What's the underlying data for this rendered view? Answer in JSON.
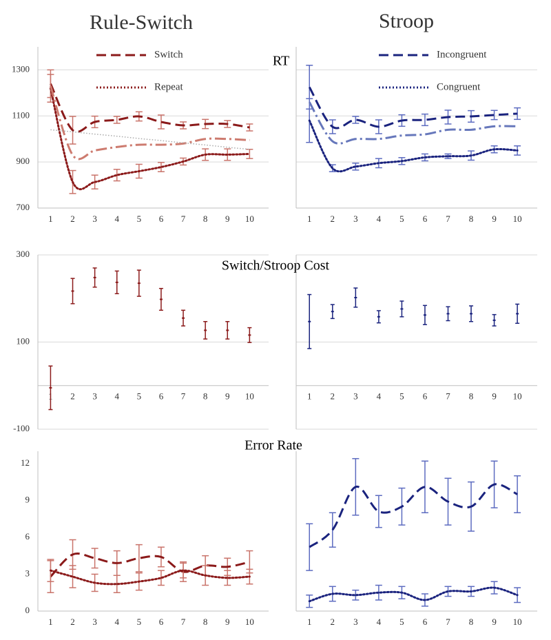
{
  "headers": [
    {
      "text": "Rule-Switch",
      "color": "#8b1a1a"
    },
    {
      "text": "Stroop",
      "color": "#1a237e"
    }
  ],
  "row_titles": [
    "RT",
    "Switch/Stroop Cost",
    "Error Rate"
  ],
  "chart_data": [
    {
      "type": "line",
      "categories": [
        "1",
        "2",
        "3",
        "4",
        "5",
        "6",
        "7",
        "8",
        "9",
        "10"
      ],
      "ylim": [
        700,
        1400
      ],
      "yticks": [
        700,
        900,
        1100,
        1300
      ],
      "show_ytick_labels": true,
      "grid": true,
      "series": [
        {
          "name": "Switch",
          "color": "#8b1a1a",
          "error_color": "#c9736a",
          "dash": "dashed",
          "values": [
            1240,
            1038,
            1074,
            1083,
            1098,
            1074,
            1059,
            1065,
            1065,
            1050
          ],
          "errors": [
            60,
            60,
            25,
            15,
            20,
            30,
            15,
            20,
            15,
            15
          ]
        },
        {
          "name": "Repeat",
          "color": "#8b1a1a",
          "error_color": "#c9736a",
          "dash": "dotted",
          "values": [
            1220,
            813,
            813,
            843,
            860,
            878,
            902,
            932,
            932,
            935
          ],
          "errors": [
            60,
            50,
            30,
            25,
            30,
            20,
            15,
            25,
            25,
            20
          ]
        },
        {
          "color": "#cd7b6f",
          "dash": "dashdot",
          "values": [
            1230,
            930,
            950,
            965,
            975,
            975,
            980,
            1000,
            1000,
            995
          ]
        },
        {
          "color": "#aaaaaa",
          "dash": "finedot",
          "values": [
            1040,
            1031,
            1021,
            1012,
            1002,
            993,
            983,
            974,
            964,
            955
          ]
        }
      ]
    },
    {
      "type": "line",
      "categories": [
        "1",
        "2",
        "3",
        "4",
        "5",
        "6",
        "7",
        "8",
        "9",
        "10"
      ],
      "ylim": [
        700,
        1400
      ],
      "yticks": [
        700,
        900,
        1100,
        1300
      ],
      "show_ytick_labels": false,
      "grid": true,
      "series": [
        {
          "name": "Incongruent",
          "color": "#1a237e",
          "error_color": "#5c6bc0",
          "dash": "dashed",
          "values": [
            1225,
            1053,
            1083,
            1053,
            1080,
            1083,
            1095,
            1098,
            1104,
            1110
          ],
          "errors": [
            95,
            30,
            15,
            30,
            25,
            25,
            30,
            25,
            20,
            25
          ]
        },
        {
          "name": "Congruent",
          "color": "#1a237e",
          "error_color": "#5c6bc0",
          "dash": "dotted",
          "values": [
            1080,
            873,
            880,
            895,
            904,
            920,
            925,
            928,
            955,
            950
          ],
          "errors": [
            95,
            15,
            15,
            20,
            15,
            15,
            10,
            20,
            15,
            20
          ]
        },
        {
          "color": "#6677bb",
          "dash": "dashdot",
          "values": [
            1160,
            990,
            1000,
            1000,
            1015,
            1020,
            1040,
            1040,
            1055,
            1055
          ]
        }
      ]
    },
    {
      "type": "errorbar",
      "categories": [
        "1",
        "2",
        "3",
        "4",
        "5",
        "6",
        "7",
        "8",
        "9",
        "10"
      ],
      "ylim": [
        -100,
        300
      ],
      "yticks": [
        -100,
        100,
        300
      ],
      "show_ytick_labels": true,
      "grid": true,
      "series": [
        {
          "color": "#8b1a1a",
          "values": [
            -5,
            217,
            248,
            237,
            235,
            198,
            155,
            127,
            127,
            116
          ],
          "errors": [
            50,
            29,
            22,
            26,
            30,
            25,
            18,
            20,
            20,
            17
          ]
        }
      ]
    },
    {
      "type": "errorbar",
      "categories": [
        "1",
        "2",
        "3",
        "4",
        "5",
        "6",
        "7",
        "8",
        "9",
        "10"
      ],
      "ylim": [
        -100,
        300
      ],
      "yticks": [
        -100,
        100,
        300
      ],
      "show_ytick_labels": false,
      "grid": true,
      "series": [
        {
          "color": "#1a237e",
          "values": [
            147,
            170,
            202,
            158,
            176,
            162,
            165,
            165,
            150,
            165
          ],
          "errors": [
            62,
            16,
            22,
            14,
            18,
            22,
            16,
            18,
            13,
            22
          ]
        }
      ]
    },
    {
      "type": "line",
      "categories": [
        "1",
        "2",
        "3",
        "4",
        "5",
        "6",
        "7",
        "8",
        "9",
        "10"
      ],
      "ylim": [
        0,
        13
      ],
      "yticks": [
        0,
        3,
        6,
        9,
        12
      ],
      "show_ytick_labels": true,
      "grid": false,
      "series": [
        {
          "color": "#8b1a1a",
          "error_color": "#c9736a",
          "dash": "dashed",
          "values": [
            2.8,
            4.6,
            4.3,
            3.9,
            4.3,
            4.4,
            3.2,
            3.7,
            3.6,
            4.0
          ],
          "errors": [
            1.3,
            1.2,
            0.8,
            1.0,
            1.1,
            0.8,
            0.8,
            0.8,
            0.7,
            0.9
          ]
        },
        {
          "color": "#8b1a1a",
          "error_color": "#c9736a",
          "dash": "dotted",
          "values": [
            3.3,
            2.8,
            2.3,
            2.2,
            2.4,
            2.7,
            3.3,
            2.9,
            2.7,
            2.8
          ],
          "errors": [
            0.9,
            0.9,
            0.7,
            0.7,
            0.7,
            0.6,
            0.6,
            0.8,
            0.6,
            0.6
          ]
        }
      ]
    },
    {
      "type": "line",
      "categories": [
        "1",
        "2",
        "3",
        "4",
        "5",
        "6",
        "7",
        "8",
        "9",
        "10"
      ],
      "ylim": [
        0,
        13
      ],
      "yticks": [
        0,
        3,
        6,
        9,
        12
      ],
      "show_ytick_labels": false,
      "grid": false,
      "series": [
        {
          "color": "#1a237e",
          "error_color": "#5c6bc0",
          "dash": "dashed",
          "values": [
            5.2,
            6.6,
            10.1,
            8.1,
            8.5,
            10.1,
            8.9,
            8.5,
            10.3,
            9.5
          ],
          "errors": [
            1.9,
            1.4,
            2.3,
            1.3,
            1.5,
            2.1,
            1.9,
            2.0,
            1.9,
            1.5
          ]
        },
        {
          "color": "#1a237e",
          "error_color": "#5c6bc0",
          "dash": "dotted",
          "values": [
            0.8,
            1.4,
            1.3,
            1.5,
            1.5,
            0.9,
            1.6,
            1.6,
            1.9,
            1.3
          ],
          "errors": [
            0.5,
            0.6,
            0.4,
            0.6,
            0.5,
            0.5,
            0.4,
            0.4,
            0.5,
            0.6
          ]
        }
      ]
    }
  ]
}
